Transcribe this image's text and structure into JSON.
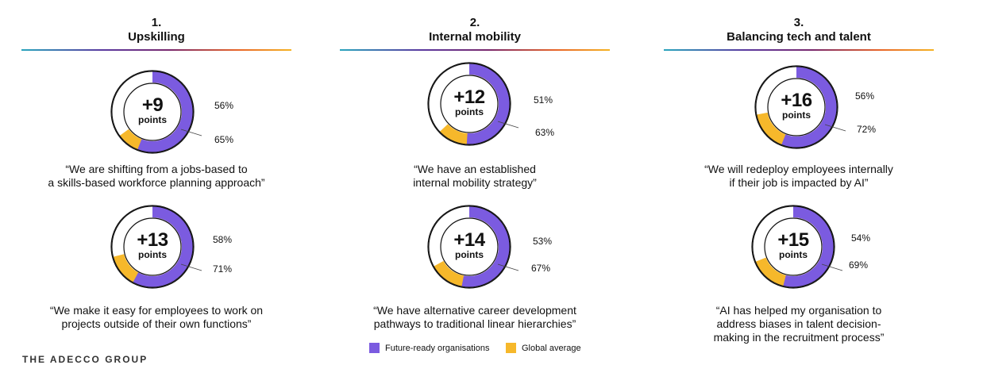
{
  "columns": [
    {
      "number": "1.",
      "title": "Upskilling",
      "items": [
        {
          "points_value": "+9",
          "points_unit": "points",
          "future_ready_label": "65%",
          "global_label": "56%",
          "quote": "“We are shifting from a jobs-based to\na skills-based workforce planning approach”"
        },
        {
          "points_value": "+13",
          "points_unit": "points",
          "future_ready_label": "71%",
          "global_label": "58%",
          "quote": "“We make it easy for employees to work on\nprojects outside of their own functions”"
        }
      ]
    },
    {
      "number": "2.",
      "title": "Internal mobility",
      "items": [
        {
          "points_value": "+12",
          "points_unit": "points",
          "future_ready_label": "63%",
          "global_label": "51%",
          "quote": "“We have an established\ninternal mobility strategy”"
        },
        {
          "points_value": "+14",
          "points_unit": "points",
          "future_ready_label": "67%",
          "global_label": "53%",
          "quote": "“We have alternative career development\npathways to traditional linear hierarchies”"
        }
      ]
    },
    {
      "number": "3.",
      "title": "Balancing tech and talent",
      "items": [
        {
          "points_value": "+16",
          "points_unit": "points",
          "future_ready_label": "72%",
          "global_label": "56%",
          "quote": "“We will redeploy employees internally\nif their job is impacted by AI”"
        },
        {
          "points_value": "+15",
          "points_unit": "points",
          "future_ready_label": "69%",
          "global_label": "54%",
          "quote": "“AI has helped my organisation to\naddress biases in talent decision-\nmaking in the recruitment process”"
        }
      ]
    }
  ],
  "legend": {
    "future_ready": "Future-ready organisations",
    "global": "Global average"
  },
  "footer": {
    "logo_text": "THE ADECCO GROUP"
  },
  "colors": {
    "future_ready": "#7b5be0",
    "global": "#f6b82b",
    "track_stroke": "#111111",
    "inner_fill": "#ffffff"
  },
  "chart_data": {
    "type": "donut",
    "series": [
      {
        "name": "Future-ready organisations",
        "values": [
          65,
          71,
          63,
          67,
          72,
          69
        ]
      },
      {
        "name": "Global average",
        "values": [
          56,
          58,
          51,
          53,
          56,
          54
        ]
      }
    ],
    "categories": [
      "“We are shifting from a jobs-based to a skills-based workforce planning approach”",
      "“We make it easy for employees to work on projects outside of their own functions”",
      "“We have an established internal mobility strategy”",
      "“We have alternative career development pathways to traditional linear hierarchies”",
      "“We will redeploy employees internally if their job is impacted by AI”",
      "“AI has helped my organisation to address biases in talent decision-making in the recruitment process”"
    ],
    "differences": [
      "+9",
      "+13",
      "+12",
      "+14",
      "+16",
      "+15"
    ],
    "max": 100
  }
}
